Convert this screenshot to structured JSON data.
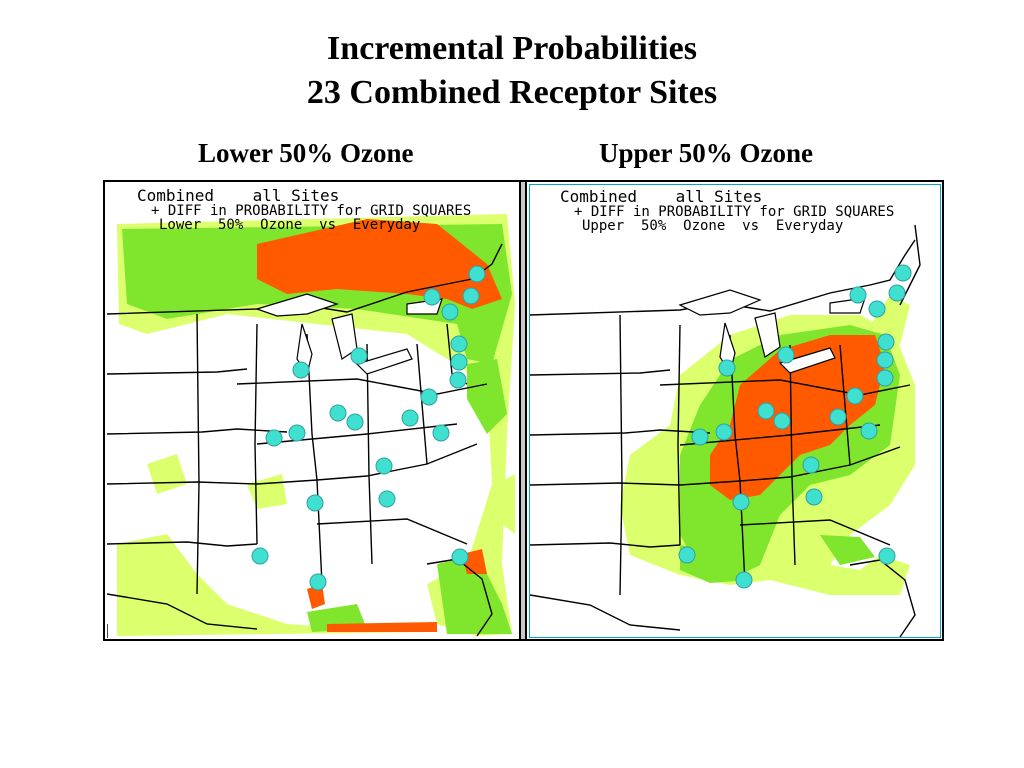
{
  "title": {
    "line1": "Incremental Probabilities",
    "line2": "23 Combined Receptor Sites"
  },
  "panels": [
    {
      "subtitle": "Lower 50% Ozone",
      "header_line1": "Combined    all Sites",
      "header_line2": "+ DIFF in PROBABILITY for GRID SQUARES",
      "header_line3": "Lower  50%  Ozone  vs  Everyday"
    },
    {
      "subtitle": "Upper 50% Ozone",
      "header_line1": "Combined    all Sites",
      "header_line2": "+ DIFF in PROBABILITY for GRID SQUARES",
      "header_line3": "Upper  50%  Ozone  vs  Everyday"
    }
  ],
  "colors": {
    "high": "#ff5a00",
    "mid": "#7fe62d",
    "low": "#dcff6e",
    "site": "#40e0d0",
    "border": "#000000",
    "frame": "#00a6c8"
  },
  "legend_note": "receptor sites shown as cyan octagons"
}
